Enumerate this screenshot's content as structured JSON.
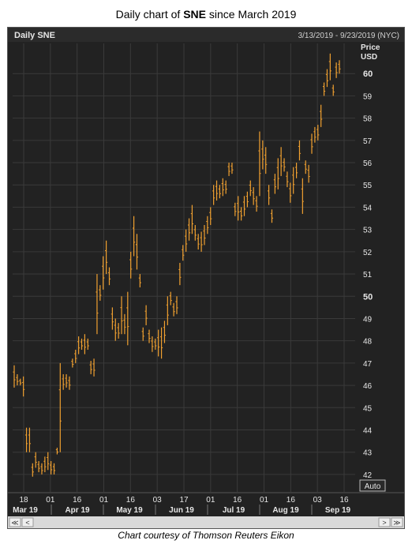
{
  "title": {
    "prefix": "Daily chart of ",
    "ticker": "SNE",
    "suffix": " since March 2019"
  },
  "header": {
    "left_label": "Daily SNE",
    "date_range": "3/13/2019 - 9/23/2019 (NYC)"
  },
  "axis": {
    "price_label_line1": "Price",
    "price_label_line2": "USD",
    "auto_button": "Auto"
  },
  "scrollbar": {
    "first_label": "≪",
    "left_arrow": "<",
    "right_arrow": ">",
    "last_label": "≫"
  },
  "credit": "Chart courtesy of Thomson Reuters Eikon",
  "colors": {
    "background": "#222222",
    "grid": "#3a3a3a",
    "bars": "#f0a030",
    "text": "#e6e6e6"
  },
  "chart_data": {
    "type": "ohlc",
    "y_ticks": [
      42,
      43,
      44,
      45,
      46,
      47,
      48,
      49,
      50,
      51,
      52,
      53,
      54,
      55,
      56,
      57,
      58,
      59,
      60
    ],
    "y_bold_ticks": [
      50,
      60
    ],
    "ylim": [
      41.5,
      61
    ],
    "x_day_ticks": [
      "18",
      "01",
      "16",
      "01",
      "16",
      "03",
      "17",
      "01",
      "16",
      "01",
      "16",
      "03",
      "16"
    ],
    "x_month_labels": [
      "Mar 19",
      "Apr 19",
      "May 19",
      "Jun 19",
      "Jul 19",
      "Aug 19",
      "Sep 19"
    ],
    "grid": true,
    "bars": [
      {
        "h": 46.9,
        "l": 45.9
      },
      {
        "h": 46.5,
        "l": 46.0
      },
      {
        "h": 46.3,
        "l": 46.0
      },
      {
        "h": 46.4,
        "l": 45.5
      },
      {
        "h": 44.1,
        "l": 43.0
      },
      {
        "h": 44.1,
        "l": 43.0
      },
      {
        "h": 42.5,
        "l": 41.9
      },
      {
        "h": 43.0,
        "l": 42.3
      },
      {
        "h": 42.6,
        "l": 42.1
      },
      {
        "h": 42.5,
        "l": 42.0
      },
      {
        "h": 42.8,
        "l": 42.1
      },
      {
        "h": 43.0,
        "l": 42.2
      },
      {
        "h": 42.6,
        "l": 42.0
      },
      {
        "h": 42.5,
        "l": 42.0
      },
      {
        "h": 43.2,
        "l": 42.9
      },
      {
        "h": 47.0,
        "l": 43.0
      },
      {
        "h": 46.5,
        "l": 45.8
      },
      {
        "h": 46.5,
        "l": 45.9
      },
      {
        "h": 46.4,
        "l": 45.8
      },
      {
        "h": 47.2,
        "l": 46.8
      },
      {
        "h": 47.6,
        "l": 47.0
      },
      {
        "h": 48.2,
        "l": 47.4
      },
      {
        "h": 48.1,
        "l": 47.6
      },
      {
        "h": 48.3,
        "l": 47.4
      },
      {
        "h": 48.1,
        "l": 47.6
      },
      {
        "h": 47.1,
        "l": 46.5
      },
      {
        "h": 47.2,
        "l": 46.4
      },
      {
        "h": 51.0,
        "l": 48.3
      },
      {
        "h": 50.5,
        "l": 49.8
      },
      {
        "h": 51.8,
        "l": 50.3
      },
      {
        "h": 52.5,
        "l": 51.0
      },
      {
        "h": 51.3,
        "l": 50.5
      },
      {
        "h": 49.5,
        "l": 48.5
      },
      {
        "h": 49.0,
        "l": 48.0
      },
      {
        "h": 48.8,
        "l": 48.1
      },
      {
        "h": 50.0,
        "l": 48.3
      },
      {
        "h": 49.2,
        "l": 48.3
      },
      {
        "h": 50.2,
        "l": 47.8
      },
      {
        "h": 52.0,
        "l": 50.8
      },
      {
        "h": 53.6,
        "l": 51.8
      },
      {
        "h": 52.8,
        "l": 51.2
      },
      {
        "h": 51.0,
        "l": 50.4
      },
      {
        "h": 48.6,
        "l": 48.0
      },
      {
        "h": 49.6,
        "l": 48.7
      },
      {
        "h": 48.5,
        "l": 47.9
      },
      {
        "h": 48.2,
        "l": 47.5
      },
      {
        "h": 48.1,
        "l": 47.6
      },
      {
        "h": 48.5,
        "l": 47.3
      },
      {
        "h": 48.6,
        "l": 47.2
      },
      {
        "h": 48.9,
        "l": 47.9
      },
      {
        "h": 50.0,
        "l": 48.7
      },
      {
        "h": 50.2,
        "l": 49.6
      },
      {
        "h": 49.7,
        "l": 49.1
      },
      {
        "h": 50.0,
        "l": 49.2
      },
      {
        "h": 51.5,
        "l": 50.5
      },
      {
        "h": 52.3,
        "l": 51.6
      },
      {
        "h": 53.0,
        "l": 52.0
      },
      {
        "h": 53.5,
        "l": 52.5
      },
      {
        "h": 54.1,
        "l": 52.8
      },
      {
        "h": 53.2,
        "l": 52.5
      },
      {
        "h": 52.8,
        "l": 52.1
      },
      {
        "h": 52.9,
        "l": 52.0
      },
      {
        "h": 53.2,
        "l": 52.3
      },
      {
        "h": 53.6,
        "l": 52.8
      },
      {
        "h": 54.0,
        "l": 53.2
      },
      {
        "h": 55.0,
        "l": 54.1
      },
      {
        "h": 55.2,
        "l": 54.3
      },
      {
        "h": 55.0,
        "l": 54.4
      },
      {
        "h": 55.3,
        "l": 54.5
      },
      {
        "h": 55.2,
        "l": 54.6
      },
      {
        "h": 56.0,
        "l": 55.4
      },
      {
        "h": 56.0,
        "l": 55.5
      },
      {
        "h": 54.2,
        "l": 53.6
      },
      {
        "h": 54.5,
        "l": 53.4
      },
      {
        "h": 54.0,
        "l": 53.4
      },
      {
        "h": 54.5,
        "l": 53.6
      },
      {
        "h": 54.7,
        "l": 54.0
      },
      {
        "h": 55.2,
        "l": 54.5
      },
      {
        "h": 54.9,
        "l": 54.1
      },
      {
        "h": 54.5,
        "l": 53.8
      },
      {
        "h": 57.4,
        "l": 54.5
      },
      {
        "h": 57.0,
        "l": 55.7
      },
      {
        "h": 56.7,
        "l": 55.5
      },
      {
        "h": 55.0,
        "l": 54.1
      },
      {
        "h": 53.9,
        "l": 53.3
      },
      {
        "h": 55.5,
        "l": 54.6
      },
      {
        "h": 56.2,
        "l": 54.8
      },
      {
        "h": 56.7,
        "l": 55.4
      },
      {
        "h": 56.2,
        "l": 55.6
      },
      {
        "h": 55.6,
        "l": 54.9
      },
      {
        "h": 55.1,
        "l": 54.2
      },
      {
        "h": 55.8,
        "l": 54.6
      },
      {
        "h": 56.0,
        "l": 55.3
      },
      {
        "h": 57.0,
        "l": 56.1
      },
      {
        "h": 55.3,
        "l": 53.7
      },
      {
        "h": 56.1,
        "l": 55.5
      },
      {
        "h": 55.9,
        "l": 55.1
      },
      {
        "h": 57.3,
        "l": 56.4
      },
      {
        "h": 57.6,
        "l": 56.9
      },
      {
        "h": 57.7,
        "l": 57.0
      },
      {
        "h": 58.6,
        "l": 57.6
      },
      {
        "h": 59.6,
        "l": 59.0
      },
      {
        "h": 60.2,
        "l": 59.4
      },
      {
        "h": 60.9,
        "l": 59.7
      },
      {
        "h": 59.5,
        "l": 59.0
      },
      {
        "h": 60.5,
        "l": 59.8
      },
      {
        "h": 60.6,
        "l": 60.0
      }
    ]
  }
}
